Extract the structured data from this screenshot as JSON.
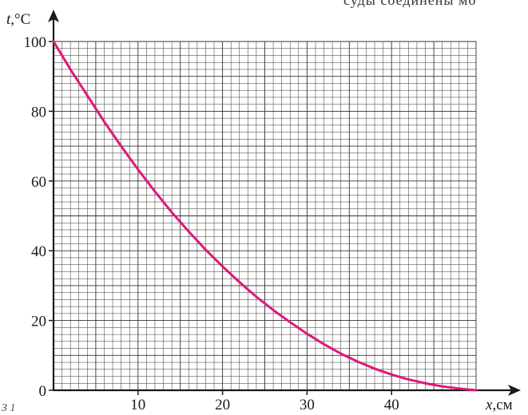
{
  "page": {
    "top_fragment": "суды соединены мо",
    "bottom_fragment": "З 1"
  },
  "chart_data": {
    "type": "line",
    "xlabel_var": "x",
    "xlabel_unit": ",см",
    "ylabel_var": "t",
    "ylabel_unit": ",°C",
    "xlim": [
      0,
      50
    ],
    "ylim": [
      0,
      100
    ],
    "x_ticks": [
      10,
      20,
      30,
      40
    ],
    "y_ticks": [
      0,
      20,
      40,
      60,
      80,
      100
    ],
    "grid": true,
    "grid_minor_x": 1,
    "grid_minor_y": 2,
    "grid_major_x": 5,
    "grid_major_y": 10,
    "series": [
      {
        "color": "#e0177a",
        "x": [
          0,
          2,
          4,
          6,
          8,
          10,
          12,
          14,
          16,
          18,
          20,
          22,
          24,
          26,
          28,
          30,
          32,
          34,
          36,
          38,
          40,
          42,
          44,
          46,
          48,
          50
        ],
        "y": [
          100,
          92,
          84.5,
          77,
          70,
          63.3,
          57,
          51,
          45.5,
          40.3,
          35.5,
          31,
          26.8,
          23,
          19.5,
          16.2,
          13.2,
          10.5,
          8.2,
          6.2,
          4.5,
          3.1,
          2,
          1.1,
          0.5,
          0
        ]
      }
    ],
    "colors": {
      "axis": "#1a1a1a",
      "grid": "#333333",
      "curve": "#e0177a"
    }
  }
}
